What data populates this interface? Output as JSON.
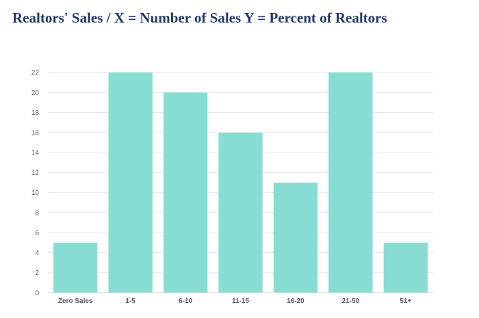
{
  "chart_data": {
    "type": "bar",
    "title": "Realtors' Sales / X = Number of Sales Y = Percent of Realtors",
    "categories": [
      "Zero Sales",
      "1-5",
      "6-10",
      "11-15",
      "16-20",
      "21-50",
      "51+"
    ],
    "values": [
      5,
      22,
      20,
      16,
      11,
      22,
      5
    ],
    "xlabel": "",
    "ylabel": "",
    "ylim": [
      0,
      22
    ],
    "yticks": [
      0,
      2,
      4,
      6,
      8,
      10,
      12,
      14,
      16,
      18,
      20,
      22
    ],
    "grid": true,
    "bar_color": "#88ddd3",
    "grid_color": "#e4e6ea",
    "axis_color": "#cfd3d8"
  }
}
